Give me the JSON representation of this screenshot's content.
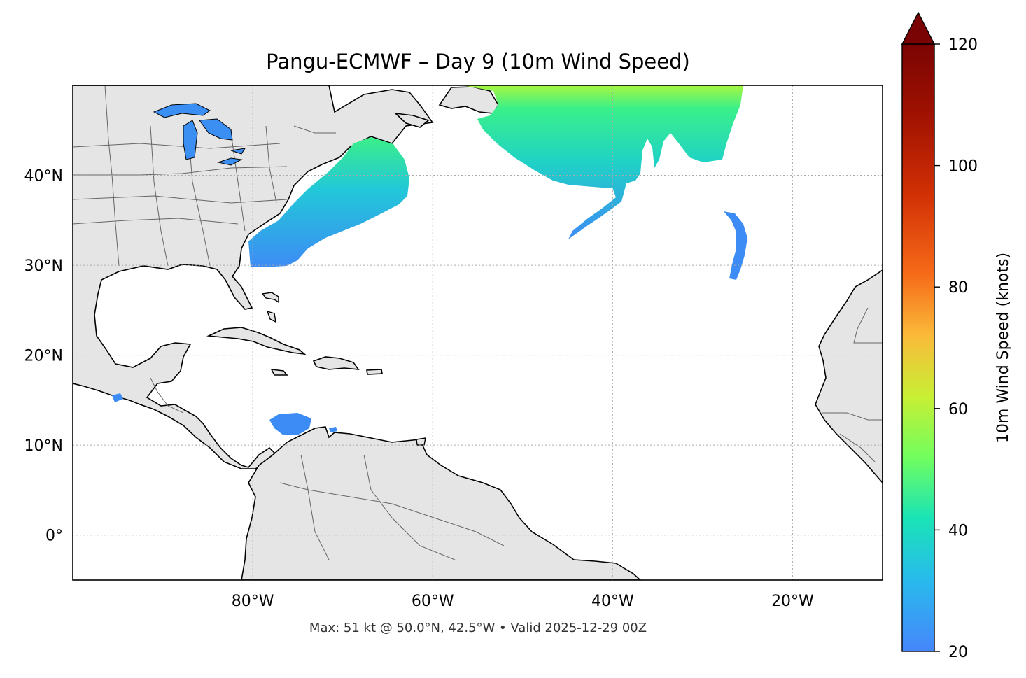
{
  "title": "Pangu-ECMWF – Day 9 (10m Wind Speed)",
  "footer": "Max: 51 kt @ 50.0°N, 42.5°W • Valid 2025-12-29 00Z",
  "map": {
    "projection": "PlateCarree",
    "lon_range": [
      -100,
      -10
    ],
    "lat_range": [
      -5,
      50
    ],
    "lat_ticks": [
      {
        "value": 40,
        "label": "40°N"
      },
      {
        "value": 30,
        "label": "30°N"
      },
      {
        "value": 20,
        "label": "20°N"
      },
      {
        "value": 10,
        "label": "10°N"
      },
      {
        "value": 0,
        "label": "0°"
      }
    ],
    "lon_ticks": [
      {
        "value": -80,
        "label": "80°W"
      },
      {
        "value": -60,
        "label": "60°W"
      },
      {
        "value": -40,
        "label": "40°W"
      },
      {
        "value": -20,
        "label": "20°W"
      }
    ],
    "gridlines": true,
    "land_color": "#e5e5e5",
    "coastline_color": "#000000",
    "border_color": "#666666",
    "max_wind": {
      "value_kt": 51,
      "lat": 50.0,
      "lon": -42.5
    }
  },
  "colorbar": {
    "label": "10m Wind Speed (knots)",
    "colormap": "turbo",
    "min": 20,
    "max": 120,
    "extend": "max",
    "ticks": [
      {
        "value": 20,
        "label": "20"
      },
      {
        "value": 40,
        "label": "40"
      },
      {
        "value": 60,
        "label": "60"
      },
      {
        "value": 80,
        "label": "80"
      },
      {
        "value": 100,
        "label": "100"
      },
      {
        "value": 120,
        "label": "120"
      }
    ]
  }
}
